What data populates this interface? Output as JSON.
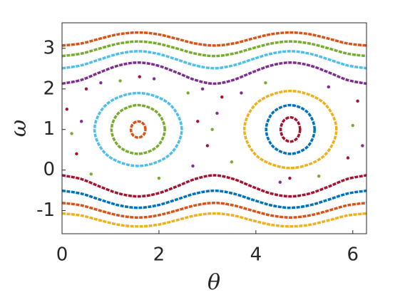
{
  "chart_data": {
    "type": "scatter",
    "x_label": "θ",
    "y_label": "ω",
    "xlim": [
      0,
      6.2832
    ],
    "ylim": [
      -1.57,
      3.63
    ],
    "xticks": [
      0,
      2,
      4,
      6
    ],
    "yticks": [
      -1,
      0,
      1,
      2,
      3
    ],
    "series": [
      {
        "color": "#d95319",
        "x": [
          0,
          0.393,
          0.785,
          1.178,
          1.571,
          1.963,
          2.356,
          2.749,
          3.142,
          3.534,
          3.927,
          4.32,
          4.712,
          5.105,
          5.498,
          5.89,
          6.283
        ],
        "values": [
          3.07,
          3.12,
          3.24,
          3.35,
          3.39,
          3.35,
          3.24,
          3.12,
          3.07,
          3.12,
          3.24,
          3.35,
          3.39,
          3.35,
          3.24,
          3.12,
          3.07
        ]
      },
      {
        "color": "#77ac30",
        "x": [
          0,
          0.393,
          0.785,
          1.178,
          1.571,
          1.963,
          2.356,
          2.749,
          3.142,
          3.534,
          3.927,
          4.32,
          4.712,
          5.105,
          5.498,
          5.89,
          6.283
        ],
        "values": [
          2.81,
          2.87,
          3.0,
          3.12,
          3.17,
          3.12,
          3.0,
          2.87,
          2.81,
          2.87,
          3.0,
          3.12,
          3.17,
          3.12,
          3.0,
          2.87,
          2.81
        ]
      },
      {
        "color": "#4dbeee",
        "x": [
          0,
          0.393,
          0.785,
          1.178,
          1.571,
          1.963,
          2.356,
          2.749,
          3.142,
          3.534,
          3.927,
          4.32,
          4.712,
          5.105,
          5.498,
          5.89,
          6.283
        ],
        "values": [
          2.51,
          2.58,
          2.73,
          2.87,
          2.93,
          2.87,
          2.73,
          2.58,
          2.51,
          2.58,
          2.73,
          2.87,
          2.93,
          2.87,
          2.73,
          2.58,
          2.51
        ]
      },
      {
        "color": "#7e2f8e",
        "x": [
          0,
          0.393,
          0.785,
          1.178,
          1.571,
          1.963,
          2.356,
          2.749,
          3.142,
          3.534,
          3.927,
          4.32,
          4.712,
          5.105,
          5.498,
          5.89,
          6.283
        ],
        "values": [
          2.13,
          2.22,
          2.41,
          2.58,
          2.65,
          2.58,
          2.41,
          2.22,
          2.13,
          2.22,
          2.41,
          2.58,
          2.65,
          2.58,
          2.41,
          2.22,
          2.13
        ]
      },
      {
        "color": "#a2142f",
        "x": [
          0,
          0.393,
          0.785,
          1.178,
          1.571,
          1.963,
          2.356,
          2.749,
          3.142,
          3.534,
          3.927,
          4.32,
          4.712,
          5.105,
          5.498,
          5.89,
          6.283
        ],
        "values": [
          -0.13,
          -0.22,
          -0.41,
          -0.58,
          -0.65,
          -0.58,
          -0.41,
          -0.22,
          -0.13,
          -0.22,
          -0.41,
          -0.58,
          -0.65,
          -0.58,
          -0.41,
          -0.22,
          -0.13
        ]
      },
      {
        "color": "#0072bd",
        "x": [
          0,
          0.393,
          0.785,
          1.178,
          1.571,
          1.963,
          2.356,
          2.749,
          3.142,
          3.534,
          3.927,
          4.32,
          4.712,
          5.105,
          5.498,
          5.89,
          6.283
        ],
        "values": [
          -0.51,
          -0.58,
          -0.73,
          -0.87,
          -0.93,
          -0.87,
          -0.73,
          -0.58,
          -0.51,
          -0.58,
          -0.73,
          -0.87,
          -0.93,
          -0.87,
          -0.73,
          -0.58,
          -0.51
        ]
      },
      {
        "color": "#d95319",
        "x": [
          0,
          0.393,
          0.785,
          1.178,
          1.571,
          1.963,
          2.356,
          2.749,
          3.142,
          3.534,
          3.927,
          4.32,
          4.712,
          5.105,
          5.498,
          5.89,
          6.283
        ],
        "values": [
          -0.81,
          -0.87,
          -1.0,
          -1.12,
          -1.17,
          -1.12,
          -1.0,
          -0.87,
          -0.81,
          -0.87,
          -1.0,
          -1.12,
          -1.17,
          -1.12,
          -1.0,
          -0.87,
          -0.81
        ]
      },
      {
        "color": "#edb120",
        "x": [
          0,
          0.393,
          0.785,
          1.178,
          1.571,
          1.963,
          2.356,
          2.749,
          3.142,
          3.534,
          3.927,
          4.32,
          4.712,
          5.105,
          5.498,
          5.89,
          6.283
        ],
        "values": [
          -1.07,
          -1.12,
          -1.24,
          -1.35,
          -1.39,
          -1.35,
          -1.24,
          -1.12,
          -1.07,
          -1.12,
          -1.24,
          -1.35,
          -1.39,
          -1.35,
          -1.24,
          -1.12,
          -1.07
        ]
      },
      {
        "color": "#a2142f",
        "mode": "markers",
        "x": [
          0.1,
          0.3,
          0.5,
          2.8,
          3.0,
          3.3,
          5.9,
          6.1,
          1.6,
          4.7
        ],
        "values": [
          1.5,
          0.4,
          2.0,
          1.2,
          0.6,
          1.8,
          0.3,
          1.7,
          2.3,
          -0.2
        ]
      },
      {
        "color": "#77ac30",
        "mode": "markers",
        "x": [
          0.2,
          0.6,
          2.6,
          3.1,
          3.5,
          6.0,
          1.2,
          4.2,
          5.3,
          2.0
        ],
        "values": [
          0.9,
          -0.1,
          1.9,
          1.0,
          0.2,
          1.1,
          2.2,
          2.15,
          -0.15,
          -0.2
        ]
      },
      {
        "color": "#7e2f8e",
        "mode": "markers",
        "x": [
          0.4,
          2.9,
          3.2,
          6.2,
          0.8,
          5.5,
          1.9,
          4.5,
          3.7,
          2.7
        ],
        "values": [
          1.2,
          2.0,
          1.4,
          0.6,
          2.15,
          2.05,
          2.25,
          -0.3,
          1.9,
          0.1
        ]
      },
      {
        "color": "#4dbeee",
        "closed": true,
        "x": [
          2.471,
          2.207,
          1.571,
          0.935,
          0.671,
          0.935,
          1.571,
          2.207
        ],
        "values": [
          1,
          1.636,
          1.9,
          1.636,
          1,
          0.364,
          0.1,
          0.364
        ]
      },
      {
        "color": "#77ac30",
        "closed": true,
        "x": [
          2.121,
          1.96,
          1.571,
          1.182,
          1.021,
          1.182,
          1.571,
          1.96
        ],
        "values": [
          1,
          1.424,
          1.6,
          1.424,
          1,
          0.576,
          0.4,
          0.576
        ]
      },
      {
        "color": "#d95319",
        "closed": true,
        "x": [
          1.721,
          1.677,
          1.571,
          1.465,
          1.421,
          1.465,
          1.571,
          1.677
        ],
        "values": [
          1,
          1.141,
          1.2,
          1.141,
          1,
          0.859,
          0.8,
          0.859
        ]
      },
      {
        "color": "#edb120",
        "closed": true,
        "x": [
          5.662,
          5.384,
          4.712,
          4.04,
          3.762,
          4.04,
          4.712,
          5.384
        ],
        "values": [
          1,
          1.672,
          1.95,
          1.672,
          1,
          0.328,
          0.05,
          0.328
        ]
      },
      {
        "color": "#0072bd",
        "closed": true,
        "x": [
          5.212,
          5.066,
          4.712,
          4.358,
          4.212,
          4.358,
          4.712,
          5.066
        ],
        "values": [
          1,
          1.424,
          1.6,
          1.424,
          1,
          0.576,
          0.4,
          0.576
        ]
      },
      {
        "color": "#a2142f",
        "closed": true,
        "x": [
          4.912,
          4.853,
          4.712,
          4.571,
          4.512,
          4.571,
          4.712,
          4.853
        ],
        "values": [
          1,
          1.212,
          1.3,
          1.212,
          1,
          0.788,
          0.7,
          0.788
        ]
      }
    ]
  }
}
